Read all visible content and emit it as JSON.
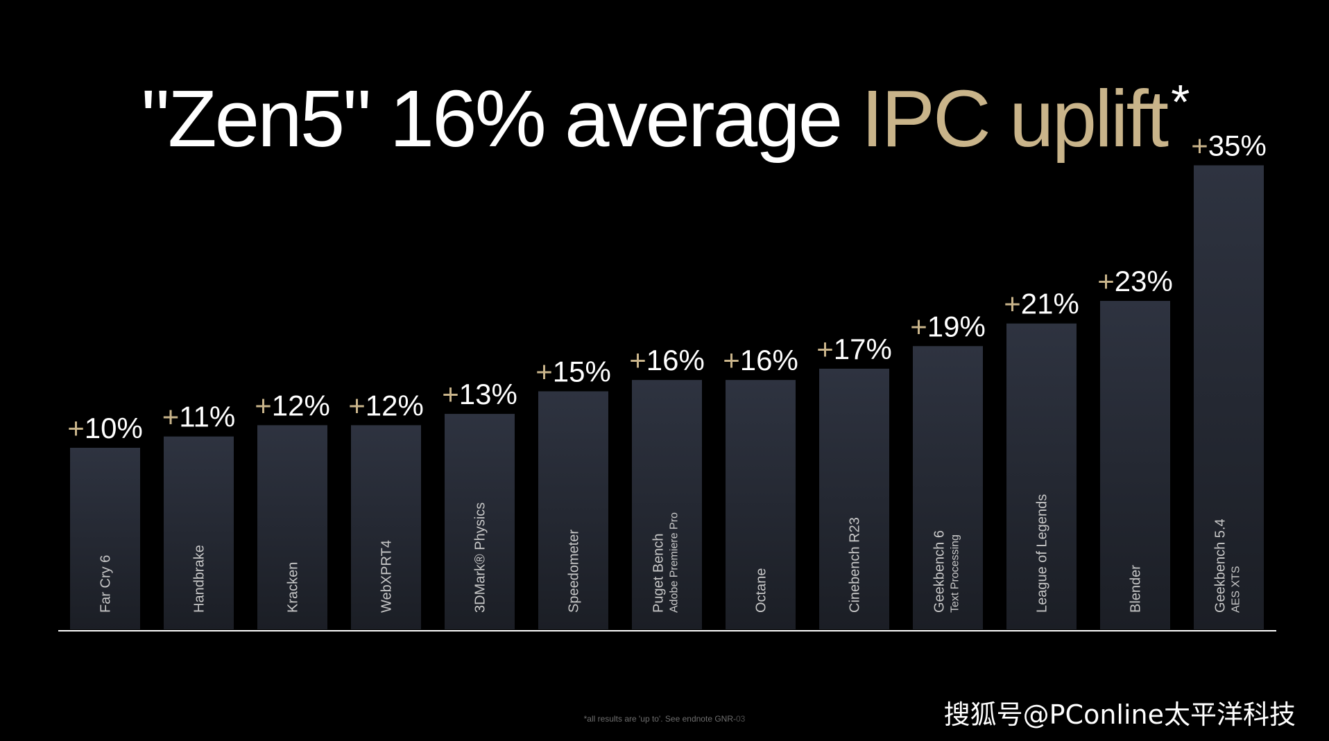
{
  "slide": {
    "title_main": "\"Zen5\" 16% average ",
    "title_highlight": "IPC uplift",
    "title_asterisk": "*",
    "footnote": "*all results are 'up to'. See endnote GNR-",
    "footnote_code": "03",
    "watermark": "搜狐号@PConline太平洋科技"
  },
  "chart_data": {
    "type": "bar",
    "title": "\"Zen5\" 16% average IPC uplift*",
    "categories": [
      "Far Cry 6",
      "Handbrake",
      "Kracken",
      "WebXPRT4",
      "3DMark® Physics",
      "Speedometer",
      "Puget Bench",
      "Octane",
      "Cinebench R23",
      "Geekbench 6",
      "League of Legends",
      "Blender",
      "Geekbench 5.4"
    ],
    "subcategories": [
      "",
      "",
      "",
      "",
      "",
      "",
      "Adobe Premiere Pro",
      "",
      "",
      "Text Processing",
      "",
      "",
      "AES XTS"
    ],
    "values": [
      10,
      11,
      12,
      12,
      13,
      15,
      16,
      16,
      17,
      19,
      21,
      23,
      35
    ],
    "value_labels": [
      "+10%",
      "+11%",
      "+12%",
      "+12%",
      "+13%",
      "+15%",
      "+16%",
      "+16%",
      "+17%",
      "+19%",
      "+21%",
      "+23%",
      "+35%"
    ],
    "xlabel": "",
    "ylabel": "",
    "ylim": [
      0,
      35
    ],
    "grid": false,
    "legend": "none",
    "colors": {
      "bar_top": "#2e3340",
      "bar_bottom": "#1b1e25",
      "baseline": "#ffffff",
      "value_label": "#ffffff",
      "value_plus": "#c9b48a",
      "category_label": "#c8c8c8"
    }
  }
}
